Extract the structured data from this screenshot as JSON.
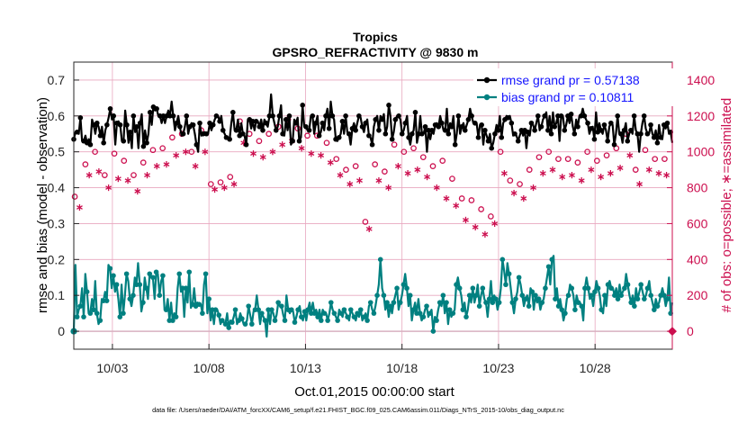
{
  "chart_data": {
    "type": "line",
    "title": "Tropics",
    "subtitle": "GPSRO_REFRACTIVITY @ 9830 m",
    "xlabel": "Oct.01,2015 00:00:00 start",
    "ylabel_left": "rmse and bias (model - observation)",
    "ylabel_right": "# of obs: o=possible; ∗=assimilated",
    "footnote": "data file: /Users/raeder/DAI/ATM_forcXX/CAM6_setup/f.e21.FHIST_BGC.f09_025.CAM6assim.011/Diags_NTrS_2015-10/obs_diag_output.nc",
    "x_unit": "days since Oct.01,2015 00:00:00",
    "xlim": [
      0,
      31
    ],
    "ylim_left": [
      -0.05,
      0.75
    ],
    "ylim_right": [
      -100,
      1500
    ],
    "yticks_left": [
      "0",
      "0.1",
      "0.2",
      "0.3",
      "0.4",
      "0.5",
      "0.6",
      "0.7"
    ],
    "yticks_right": [
      "0",
      "200",
      "400",
      "600",
      "800",
      "1000",
      "1200",
      "1400"
    ],
    "xtick_positions": [
      2,
      7,
      12,
      17,
      22,
      27
    ],
    "xticks": [
      "10/03",
      "10/08",
      "10/13",
      "10/18",
      "10/23",
      "10/28"
    ],
    "legend_position": "top-right",
    "grid": true,
    "colors": {
      "rmse": "#000000",
      "bias": "#008080",
      "obs": "#cc0f4f",
      "grid": "#e8a7bf",
      "right_axis": "#cc0f4f"
    },
    "series": [
      {
        "name": "rmse grand pr = 0.57138",
        "color": "#000000",
        "values": [
          0.535,
          0.555,
          0.555,
          0.55,
          0.595,
          0.53,
          0.53,
          0.545,
          0.525,
          0.535,
          0.52,
          0.59,
          0.575,
          0.55,
          0.58,
          0.57,
          0.545,
          0.57,
          0.525,
          0.56,
          0.575,
          0.595,
          0.62,
          0.59,
          0.6,
          0.52,
          0.58,
          0.585,
          0.575,
          0.53,
          0.53,
          0.615,
          0.575,
          0.525,
          0.555,
          0.51,
          0.6,
          0.555,
          0.57,
          0.51,
          0.58,
          0.605,
          0.515,
          0.56,
          0.525,
          0.55,
          0.61,
          0.575,
          0.625,
          0.615,
          0.62,
          0.6,
          0.6,
          0.58,
          0.6,
          0.58,
          0.6,
          0.615,
          0.6,
          0.64,
          0.6,
          0.56,
          0.58,
          0.6,
          0.57,
          0.545,
          0.55,
          0.57,
          0.6,
          0.55,
          0.57,
          0.58,
          0.575,
          0.55,
          0.52,
          0.5,
          0.58,
          0.545,
          0.55,
          0.555,
          0.55,
          0.55,
          0.58,
          0.56,
          0.575,
          0.59,
          0.6,
          0.6,
          0.585,
          0.6,
          0.56,
          0.55,
          0.54,
          0.54,
          0.535,
          0.58,
          0.61,
          0.56,
          0.56,
          0.59,
          0.545,
          0.58,
          0.55,
          0.545,
          0.52,
          0.59,
          0.59,
          0.565,
          0.585,
          0.56,
          0.585,
          0.585,
          0.57,
          0.59,
          0.56,
          0.59,
          0.58,
          0.57,
          0.6,
          0.66,
          0.6,
          0.58,
          0.56,
          0.57,
          0.6,
          0.63,
          0.55,
          0.545,
          0.59,
          0.56,
          0.6,
          0.52,
          0.53,
          0.59,
          0.58,
          0.595,
          0.53,
          0.54,
          0.63,
          0.57,
          0.57,
          0.56,
          0.56,
          0.6,
          0.6,
          0.55,
          0.58,
          0.6,
          0.545,
          0.555,
          0.58,
          0.56,
          0.6,
          0.62,
          0.565,
          0.64,
          0.6,
          0.59,
          0.535,
          0.53,
          0.54,
          0.55,
          0.585,
          0.55,
          0.6,
          0.555,
          0.55,
          0.52,
          0.565,
          0.58,
          0.56,
          0.58,
          0.6,
          0.595,
          0.57,
          0.555,
          0.58,
          0.59,
          0.545,
          0.54,
          0.52,
          0.57,
          0.59,
          0.6,
          0.56,
          0.6,
          0.59,
          0.605,
          0.55,
          0.57,
          0.63,
          0.6,
          0.535,
          0.555,
          0.59,
          0.6,
          0.6,
          0.59,
          0.55,
          0.56,
          0.58,
          0.6,
          0.54,
          0.52,
          0.55,
          0.56,
          0.61,
          0.525,
          0.55,
          0.6,
          0.55,
          0.55,
          0.57,
          0.5,
          0.56,
          0.535,
          0.56,
          0.55,
          0.575,
          0.58,
          0.57,
          0.6,
          0.58,
          0.56,
          0.56,
          0.62,
          0.55,
          0.58,
          0.57,
          0.6,
          0.52,
          0.55,
          0.6,
          0.55,
          0.57,
          0.58,
          0.56,
          0.575,
          0.59,
          0.62,
          0.6,
          0.58,
          0.58,
          0.58,
          0.54,
          0.575,
          0.575,
          0.52,
          0.56,
          0.545,
          0.53,
          0.55,
          0.51,
          0.525,
          0.55,
          0.575,
          0.56,
          0.6,
          0.54,
          0.58,
          0.59,
          0.6,
          0.595,
          0.6,
          0.58,
          0.545,
          0.55,
          0.545,
          0.53,
          0.545,
          0.56,
          0.545,
          0.56,
          0.51,
          0.555,
          0.545,
          0.58,
          0.575,
          0.56,
          0.58,
          0.6,
          0.56,
          0.57,
          0.59,
          0.6,
          0.61,
          0.56,
          0.6,
          0.55,
          0.61,
          0.57,
          0.58,
          0.6,
          0.53,
          0.6,
          0.6,
          0.56,
          0.575,
          0.6,
          0.58,
          0.605,
          0.57,
          0.55,
          0.59,
          0.57,
          0.6,
          0.6,
          0.62,
          0.6,
          0.59,
          0.58,
          0.55,
          0.565,
          0.57,
          0.535,
          0.61,
          0.555,
          0.58,
          0.56,
          0.55,
          0.575,
          0.56,
          0.53,
          0.57,
          0.58,
          0.575,
          0.52,
          0.55,
          0.6,
          0.55,
          0.55,
          0.525,
          0.56,
          0.58,
          0.53,
          0.55,
          0.56,
          0.55,
          0.6,
          0.56,
          0.55,
          0.5,
          0.55,
          0.58,
          0.6,
          0.565,
          0.55,
          0.55,
          0.575,
          0.55,
          0.54,
          0.56,
          0.525,
          0.575,
          0.54,
          0.535,
          0.575,
          0.565,
          0.58,
          0.55,
          0.555,
          0.525
        ]
      },
      {
        "name": "bias grand pr = 0.10811",
        "color": "#008080",
        "values": [
          0.0,
          0.185,
          0.04,
          0.06,
          0.07,
          0.12,
          0.04,
          0.16,
          0.11,
          0.05,
          0.05,
          0.09,
          0.06,
          0.14,
          0.05,
          0.02,
          0.03,
          0.09,
          0.085,
          0.11,
          0.085,
          0.185,
          0.175,
          0.12,
          0.155,
          0.11,
          0.13,
          0.09,
          0.04,
          0.13,
          0.05,
          0.1,
          0.16,
          0.14,
          0.09,
          0.07,
          0.1,
          0.15,
          0.13,
          0.19,
          0.13,
          0.055,
          0.08,
          0.15,
          0.12,
          0.09,
          0.16,
          0.15,
          0.15,
          0.09,
          0.165,
          0.16,
          0.1,
          0.14,
          0.155,
          0.06,
          0.06,
          0.09,
          0.03,
          0.08,
          0.03,
          0.05,
          0.04,
          0.12,
          0.16,
          0.11,
          0.12,
          0.04,
          0.12,
          0.08,
          0.165,
          0.065,
          0.075,
          0.12,
          0.07,
          0.08,
          0.075,
          0.075,
          0.05,
          0.13,
          0.16,
          0.05,
          0.09,
          0.03,
          0.06,
          0.02,
          0.06,
          0.06,
          0.045,
          0.02,
          0.03,
          0.025,
          0.02,
          0.05,
          0.01,
          0.03,
          0.025,
          0.04,
          0.06,
          0.02,
          0.03,
          0.05,
          0.035,
          0.02,
          0.02,
          0.03,
          0.07,
          0.045,
          0.02,
          0.055,
          0.06,
          0.1,
          0.06,
          0.02,
          0.05,
          0.04,
          0.03,
          -0.015,
          0.06,
          0.02,
          0.06,
          0.05,
          0.03,
          0.045,
          0.08,
          0.07,
          0.07,
          0.045,
          0.03,
          0.1,
          0.06,
          0.05,
          0.06,
          0.055,
          0.025,
          0.04,
          0.06,
          0.07,
          0.04,
          0.03,
          0.055,
          0.03,
          0.06,
          0.08,
          0.05,
          0.08,
          0.05,
          0.06,
          0.04,
          0.06,
          0.03,
          0.06,
          0.05,
          0.05,
          0.03,
          0.05,
          0.08,
          0.06,
          0.05,
          0.04,
          0.03,
          0.06,
          0.05,
          0.04,
          0.06,
          0.05,
          0.04,
          0.03,
          0.06,
          0.05,
          0.04,
          0.03,
          0.05,
          0.04,
          0.06,
          0.03,
          0.04,
          0.05,
          0.03,
          0.07,
          0.08,
          0.06,
          0.05,
          0.07,
          0.1,
          0.13,
          0.2,
          0.12,
          0.1,
          0.06,
          0.08,
          0.04,
          0.07,
          0.05,
          0.08,
          0.1,
          0.12,
          0.06,
          0.08,
          0.1,
          0.13,
          0.16,
          0.12,
          0.07,
          0.1,
          0.03,
          0.06,
          0.08,
          0.05,
          0.09,
          0.05,
          0.03,
          0.04,
          0.06,
          0.07,
          0.04,
          0.05,
          0.06,
          0.0,
          0.04,
          0.03,
          0.06,
          0.08,
          0.07,
          0.1,
          0.05,
          0.08,
          0.02,
          0.06,
          0.04,
          0.05,
          0.06,
          0.13,
          0.15,
          0.12,
          0.1,
          0.06,
          0.08,
          0.04,
          0.06,
          0.1,
          0.08,
          0.12,
          0.08,
          0.1,
          0.13,
          0.07,
          0.1,
          0.12,
          0.09,
          0.08,
          0.04,
          0.09,
          0.14,
          0.08,
          0.1,
          0.09,
          0.06,
          0.08,
          0.12,
          0.2,
          0.17,
          0.13,
          0.19,
          0.16,
          0.12,
          0.08,
          0.05,
          0.09,
          0.11,
          0.15,
          0.13,
          0.1,
          0.07,
          0.09,
          0.1,
          0.07,
          0.12,
          0.11,
          0.06,
          0.1,
          0.08,
          0.09,
          0.06,
          0.08,
          0.09,
          0.12,
          0.15,
          0.18,
          0.13,
          0.2,
          0.21,
          0.09,
          0.12,
          0.07,
          0.09,
          0.06,
          0.03,
          0.05,
          0.09,
          0.1,
          0.13,
          0.12,
          0.1,
          0.06,
          0.1,
          0.08,
          0.08,
          0.07,
          0.03,
          0.12,
          0.15,
          0.12,
          0.09,
          0.1,
          0.07,
          0.11,
          0.14,
          0.12,
          0.1,
          0.06,
          0.05,
          0.1,
          0.07,
          0.13,
          0.14,
          0.12,
          0.12,
          0.1,
          0.12,
          0.09,
          0.13,
          0.1,
          0.11,
          0.12,
          0.16,
          0.13,
          0.1,
          0.08,
          0.1,
          0.07,
          0.12,
          0.09,
          0.11,
          0.13,
          0.11,
          0.09,
          0.1,
          0.12,
          0.14,
          0.1,
          0.08,
          0.06,
          0.09,
          0.07,
          0.08,
          0.1,
          0.12,
          0.1,
          0.07,
          0.09,
          0.15,
          0.05,
          0.08
        ]
      }
    ],
    "obs_possible": [
      {
        "x": 0.05,
        "v": 750
      },
      {
        "x": 0.6,
        "v": 930
      },
      {
        "x": 1.1,
        "v": 1000
      },
      {
        "x": 1.6,
        "v": 870
      },
      {
        "x": 2.1,
        "v": 990
      },
      {
        "x": 2.6,
        "v": 950
      },
      {
        "x": 3.1,
        "v": 870
      },
      {
        "x": 3.6,
        "v": 940
      },
      {
        "x": 4.1,
        "v": 1010
      },
      {
        "x": 4.6,
        "v": 1020
      },
      {
        "x": 5.1,
        "v": 1080
      },
      {
        "x": 5.6,
        "v": 1100
      },
      {
        "x": 6.1,
        "v": 1000
      },
      {
        "x": 6.6,
        "v": 1120
      },
      {
        "x": 7.1,
        "v": 820
      },
      {
        "x": 7.6,
        "v": 830
      },
      {
        "x": 8.1,
        "v": 860
      },
      {
        "x": 8.6,
        "v": 1170
      },
      {
        "x": 9.1,
        "v": 1100
      },
      {
        "x": 9.6,
        "v": 1060
      },
      {
        "x": 10.1,
        "v": 1100
      },
      {
        "x": 10.6,
        "v": 1140
      },
      {
        "x": 11.1,
        "v": 1180
      },
      {
        "x": 11.6,
        "v": 1130
      },
      {
        "x": 12.1,
        "v": 1090
      },
      {
        "x": 12.6,
        "v": 1090
      },
      {
        "x": 13.1,
        "v": 1050
      },
      {
        "x": 13.6,
        "v": 960
      },
      {
        "x": 14.1,
        "v": 900
      },
      {
        "x": 14.6,
        "v": 920
      },
      {
        "x": 15.1,
        "v": 610
      },
      {
        "x": 15.6,
        "v": 930
      },
      {
        "x": 16.1,
        "v": 890
      },
      {
        "x": 16.6,
        "v": 1040
      },
      {
        "x": 17.1,
        "v": 1000
      },
      {
        "x": 17.6,
        "v": 1020
      },
      {
        "x": 18.1,
        "v": 970
      },
      {
        "x": 18.6,
        "v": 920
      },
      {
        "x": 19.1,
        "v": 950
      },
      {
        "x": 19.6,
        "v": 850
      },
      {
        "x": 20.1,
        "v": 740
      },
      {
        "x": 20.6,
        "v": 730
      },
      {
        "x": 21.1,
        "v": 680
      },
      {
        "x": 21.6,
        "v": 640
      },
      {
        "x": 22.1,
        "v": 1000
      },
      {
        "x": 22.6,
        "v": 840
      },
      {
        "x": 23.1,
        "v": 820
      },
      {
        "x": 23.6,
        "v": 900
      },
      {
        "x": 24.1,
        "v": 970
      },
      {
        "x": 24.6,
        "v": 1000
      },
      {
        "x": 25.1,
        "v": 960
      },
      {
        "x": 25.6,
        "v": 960
      },
      {
        "x": 26.1,
        "v": 940
      },
      {
        "x": 26.6,
        "v": 1000
      },
      {
        "x": 27.1,
        "v": 950
      },
      {
        "x": 27.6,
        "v": 980
      },
      {
        "x": 28.1,
        "v": 1020
      },
      {
        "x": 28.6,
        "v": 1100
      },
      {
        "x": 29.1,
        "v": 900
      },
      {
        "x": 29.6,
        "v": 1010
      },
      {
        "x": 30.1,
        "v": 960
      },
      {
        "x": 30.6,
        "v": 960
      }
    ],
    "obs_assimilated": [
      {
        "x": 0.3,
        "v": 690
      },
      {
        "x": 0.8,
        "v": 870
      },
      {
        "x": 1.3,
        "v": 890
      },
      {
        "x": 1.8,
        "v": 800
      },
      {
        "x": 2.3,
        "v": 850
      },
      {
        "x": 2.8,
        "v": 840
      },
      {
        "x": 3.3,
        "v": 780
      },
      {
        "x": 3.8,
        "v": 870
      },
      {
        "x": 4.3,
        "v": 920
      },
      {
        "x": 4.8,
        "v": 930
      },
      {
        "x": 5.3,
        "v": 980
      },
      {
        "x": 5.8,
        "v": 1000
      },
      {
        "x": 6.3,
        "v": 920
      },
      {
        "x": 6.8,
        "v": 1000
      },
      {
        "x": 7.3,
        "v": 790
      },
      {
        "x": 7.8,
        "v": 800
      },
      {
        "x": 8.3,
        "v": 820
      },
      {
        "x": 8.8,
        "v": 1050
      },
      {
        "x": 9.3,
        "v": 990
      },
      {
        "x": 9.8,
        "v": 970
      },
      {
        "x": 10.3,
        "v": 1000
      },
      {
        "x": 10.8,
        "v": 1040
      },
      {
        "x": 11.3,
        "v": 1060
      },
      {
        "x": 11.8,
        "v": 1020
      },
      {
        "x": 12.3,
        "v": 990
      },
      {
        "x": 12.8,
        "v": 980
      },
      {
        "x": 13.3,
        "v": 940
      },
      {
        "x": 13.8,
        "v": 870
      },
      {
        "x": 14.3,
        "v": 820
      },
      {
        "x": 14.8,
        "v": 840
      },
      {
        "x": 15.3,
        "v": 570
      },
      {
        "x": 15.8,
        "v": 840
      },
      {
        "x": 16.3,
        "v": 800
      },
      {
        "x": 16.8,
        "v": 920
      },
      {
        "x": 17.3,
        "v": 880
      },
      {
        "x": 17.8,
        "v": 900
      },
      {
        "x": 18.3,
        "v": 860
      },
      {
        "x": 18.8,
        "v": 800
      },
      {
        "x": 19.3,
        "v": 740
      },
      {
        "x": 19.8,
        "v": 700
      },
      {
        "x": 20.3,
        "v": 620
      },
      {
        "x": 20.8,
        "v": 580
      },
      {
        "x": 21.3,
        "v": 540
      },
      {
        "x": 21.8,
        "v": 600
      },
      {
        "x": 22.3,
        "v": 880
      },
      {
        "x": 22.8,
        "v": 770
      },
      {
        "x": 23.3,
        "v": 740
      },
      {
        "x": 23.8,
        "v": 800
      },
      {
        "x": 24.3,
        "v": 880
      },
      {
        "x": 24.8,
        "v": 900
      },
      {
        "x": 25.3,
        "v": 860
      },
      {
        "x": 25.8,
        "v": 870
      },
      {
        "x": 26.3,
        "v": 840
      },
      {
        "x": 26.8,
        "v": 900
      },
      {
        "x": 27.3,
        "v": 860
      },
      {
        "x": 27.8,
        "v": 880
      },
      {
        "x": 28.3,
        "v": 910
      },
      {
        "x": 28.8,
        "v": 980
      },
      {
        "x": 29.3,
        "v": 820
      },
      {
        "x": 29.8,
        "v": 900
      },
      {
        "x": 30.3,
        "v": 880
      },
      {
        "x": 30.7,
        "v": 870
      }
    ],
    "zero_line_marker_left": 0,
    "zero_line_marker_right": 0
  }
}
